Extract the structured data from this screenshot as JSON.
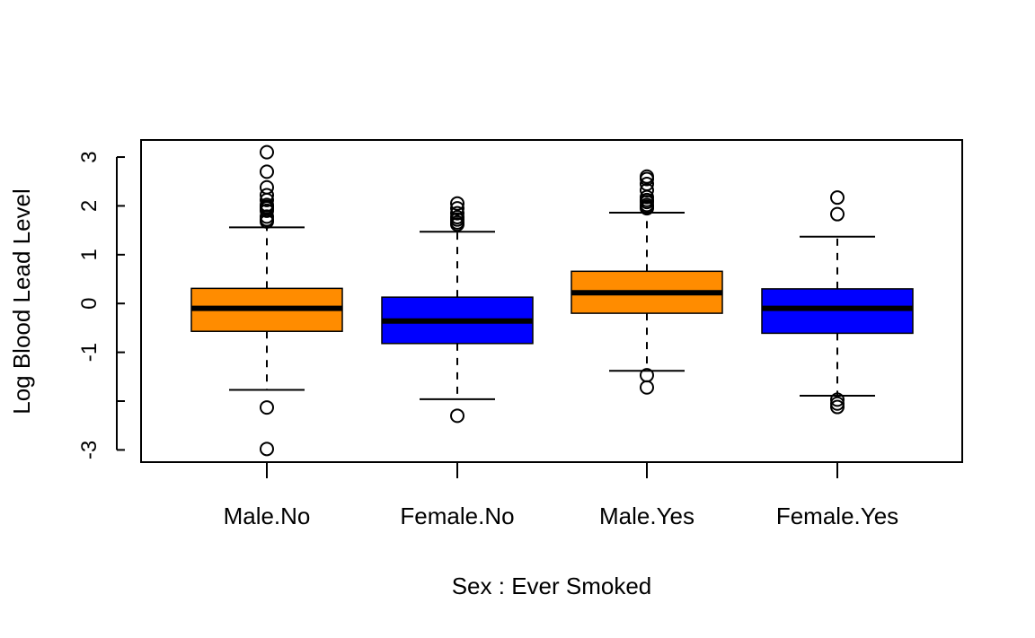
{
  "chart_data": {
    "type": "boxplot",
    "xlabel": "Sex : Ever Smoked",
    "ylabel": "Log Blood Lead Level",
    "ylim": [
      -3.25,
      3.35
    ],
    "y_ticks": [
      3,
      2,
      1,
      0,
      -1,
      -2,
      -3
    ],
    "y_tick_labels": [
      "3",
      "2",
      "1",
      "0",
      "-1",
      "",
      "-3"
    ],
    "categories": [
      "Male.No",
      "Female.No",
      "Male.Yes",
      "Female.Yes"
    ],
    "grid": false,
    "legend": "none",
    "boxes": [
      {
        "category": "Male.No",
        "color": "#FF8C00",
        "whisker_low": -1.77,
        "q1": -0.57,
        "median": -0.1,
        "q3": 0.31,
        "whisker_high": 1.56,
        "outliers": [
          3.1,
          2.7,
          2.38,
          2.22,
          2.12,
          2.02,
          1.98,
          1.95,
          1.9,
          1.78,
          1.72,
          1.68,
          -2.13,
          -2.98
        ]
      },
      {
        "category": "Female.No",
        "color": "#0000FF",
        "whisker_low": -1.96,
        "q1": -0.82,
        "median": -0.36,
        "q3": 0.13,
        "whisker_high": 1.47,
        "outliers": [
          2.05,
          1.95,
          1.85,
          1.77,
          1.72,
          1.66,
          1.62,
          -2.3
        ]
      },
      {
        "category": "Male.Yes",
        "color": "#FF8C00",
        "whisker_low": -1.38,
        "q1": -0.2,
        "median": 0.22,
        "q3": 0.66,
        "whisker_high": 1.86,
        "outliers": [
          2.6,
          2.55,
          2.45,
          2.32,
          2.18,
          2.12,
          2.08,
          2.02,
          1.98,
          1.95,
          -1.47,
          -1.72
        ]
      },
      {
        "category": "Female.Yes",
        "color": "#0000FF",
        "whisker_low": -1.89,
        "q1": -0.61,
        "median": -0.1,
        "q3": 0.3,
        "whisker_high": 1.37,
        "outliers": [
          2.17,
          1.83,
          -1.97,
          -2.05,
          -2.12
        ]
      }
    ]
  }
}
